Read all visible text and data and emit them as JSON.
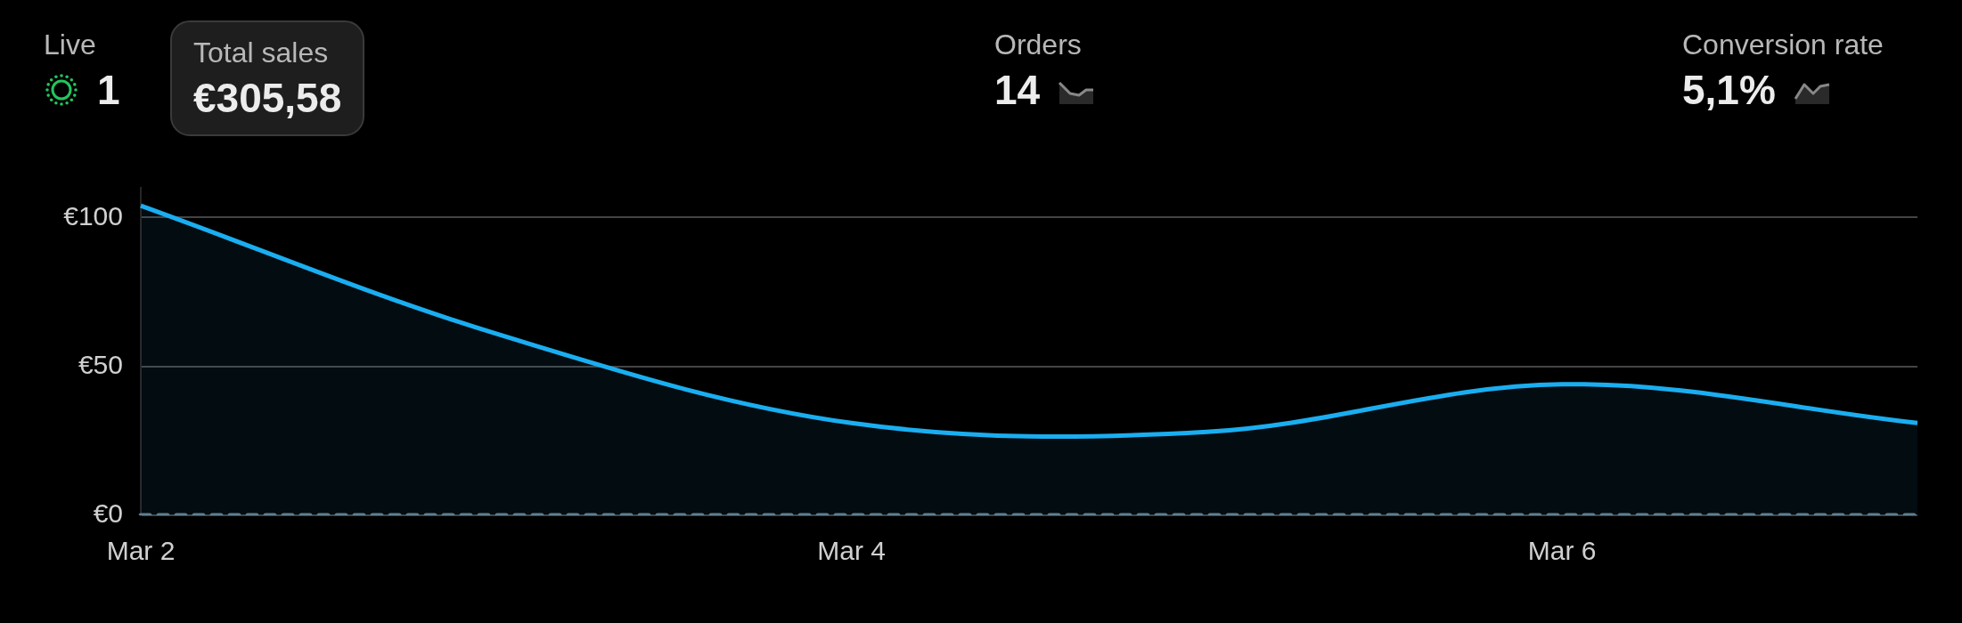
{
  "chart_data": {
    "type": "line",
    "categories": [
      "Mar 2",
      null,
      "Mar 4",
      null,
      "Mar 6",
      null
    ],
    "series": [
      {
        "type": "area",
        "color": "#1aaef0",
        "values": [
          104,
          61,
          31,
          28,
          44,
          31
        ]
      },
      {
        "type": "line",
        "color": "#5f8090",
        "line_style": "dashed",
        "values": [
          0,
          0,
          0,
          0,
          0,
          0
        ]
      }
    ],
    "ylim": [
      0,
      110
    ],
    "yticks": [
      {
        "value": 0,
        "label": "€0"
      },
      {
        "value": 50,
        "label": "€50"
      },
      {
        "value": 100,
        "label": "€100"
      }
    ],
    "grid": "y",
    "annotations": [
      "Live",
      "1",
      "Total sales",
      "€305,58",
      "Orders",
      "14",
      "Conversion rate",
      "5,1%"
    ]
  }
}
